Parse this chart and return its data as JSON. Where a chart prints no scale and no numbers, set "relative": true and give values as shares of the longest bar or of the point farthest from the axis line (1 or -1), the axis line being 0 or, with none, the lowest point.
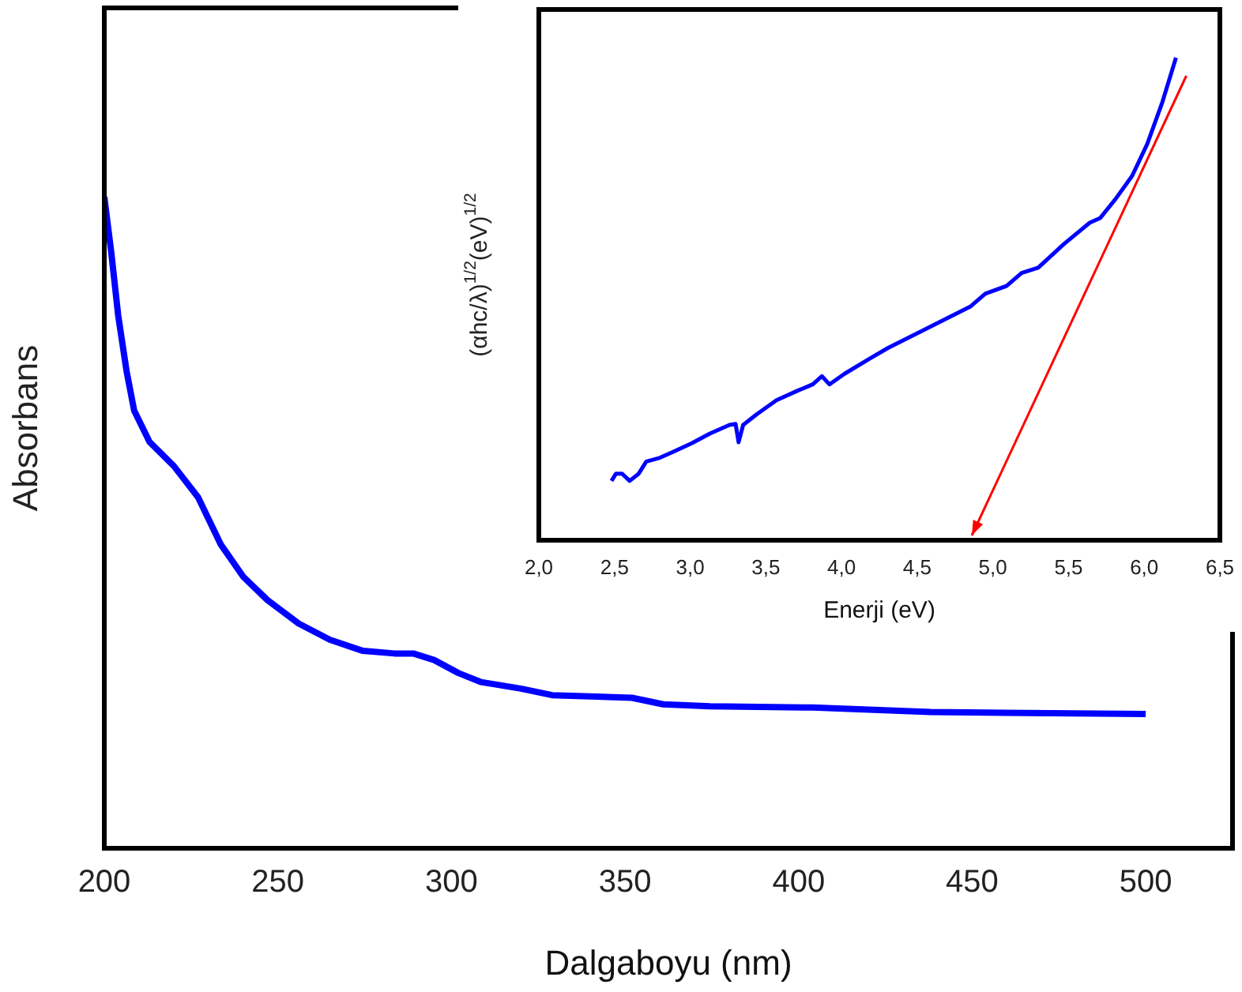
{
  "chart_data": [
    {
      "type": "line",
      "xlabel": "Dalgaboyu (nm)",
      "ylabel": "Absorbans",
      "relative": true,
      "xlim": [
        200,
        525
      ],
      "xticks": [
        200,
        250,
        300,
        350,
        400,
        450,
        500
      ],
      "x": [
        200,
        202,
        204,
        206.4,
        208.6,
        213,
        220,
        227,
        233.6,
        240,
        247,
        256,
        265,
        274.5,
        283.6,
        289,
        295,
        302,
        308.6,
        320,
        329,
        352,
        361,
        374.5,
        404,
        438,
        500
      ],
      "series": [
        {
          "color": "#0000ff",
          "values": [
            1.0,
            0.915,
            0.818,
            0.733,
            0.672,
            0.624,
            0.587,
            0.539,
            0.466,
            0.417,
            0.381,
            0.345,
            0.32,
            0.303,
            0.299,
            0.299,
            0.289,
            0.269,
            0.255,
            0.245,
            0.235,
            0.231,
            0.221,
            0.218,
            0.216,
            0.209,
            0.206
          ]
        }
      ]
    },
    {
      "type": "line",
      "xlabel": "Enerji (eV)",
      "ylabel": "(αhc/λ)$^{1/2}$(eV)$^{1/2}$",
      "relative": true,
      "xlim": [
        2.0,
        6.5
      ],
      "xticks": [
        {
          "value": 2.0,
          "label": "2,0"
        },
        {
          "value": 2.5,
          "label": "2,5"
        },
        {
          "value": 3.0,
          "label": "3,0"
        },
        {
          "value": 3.5,
          "label": "3,5"
        },
        {
          "value": 4.0,
          "label": "4,0"
        },
        {
          "value": 4.5,
          "label": "4,5"
        },
        {
          "value": 5.0,
          "label": "5,0"
        },
        {
          "value": 5.5,
          "label": "5,5"
        },
        {
          "value": 6.0,
          "label": "6,0"
        },
        {
          "value": 6.5,
          "label": "6,5"
        }
      ],
      "x": [
        2.48,
        2.51,
        2.55,
        2.6,
        2.66,
        2.71,
        2.8,
        2.88,
        3.01,
        3.13,
        3.26,
        3.3,
        3.32,
        3.35,
        3.44,
        3.57,
        3.71,
        3.81,
        3.87,
        3.92,
        4.02,
        4.19,
        4.31,
        4.5,
        4.71,
        4.85,
        4.95,
        5.09,
        5.19,
        5.3,
        5.47,
        5.64,
        5.71,
        5.81,
        5.92,
        6.02,
        6.12,
        6.21
      ],
      "series": [
        {
          "color": "#0000ff",
          "values": [
            0.123,
            0.138,
            0.138,
            0.123,
            0.138,
            0.163,
            0.171,
            0.182,
            0.201,
            0.221,
            0.239,
            0.241,
            0.203,
            0.239,
            0.261,
            0.29,
            0.31,
            0.323,
            0.34,
            0.323,
            0.345,
            0.377,
            0.399,
            0.429,
            0.462,
            0.484,
            0.511,
            0.527,
            0.554,
            0.565,
            0.614,
            0.658,
            0.668,
            0.707,
            0.755,
            0.821,
            0.908,
            1.0
          ]
        }
      ]
    }
  ]
}
